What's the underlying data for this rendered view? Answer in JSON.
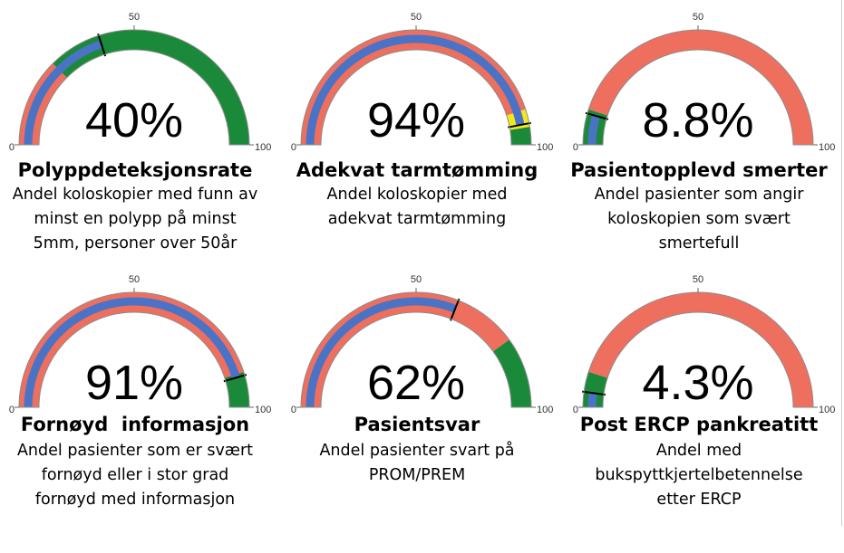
{
  "colors": {
    "red": "#ef6f5e",
    "green": "#1a8a3a",
    "blue": "#4a73c6",
    "yellow": "#f2e81c",
    "outline": "#8c8c8c",
    "needle": "#000000"
  },
  "chart_data": [
    {
      "type": "gauge",
      "title": "Polyppdeteksjonsrate",
      "description": [
        "Andel koloskopier med funn av",
        "minst en polypp på minst",
        "5mm, personer over 50år"
      ],
      "value": 40,
      "value_label": "40%",
      "min": 0,
      "mid": 50,
      "max": 100,
      "tick_labels": {
        "min": "0",
        "mid": "50",
        "max": "100"
      },
      "bands": [
        {
          "from": 0,
          "to": 25,
          "color": "red"
        },
        {
          "from": 25,
          "to": 100,
          "color": "green"
        }
      ]
    },
    {
      "type": "gauge",
      "title": "Adekvat tarmtømming",
      "description": [
        "Andel koloskopier med",
        "adekvat tarmtømming"
      ],
      "value": 94,
      "value_label": "94%",
      "min": 0,
      "mid": 50,
      "max": 100,
      "tick_labels": {
        "min": "0",
        "mid": "50",
        "max": "100"
      },
      "bands": [
        {
          "from": 0,
          "to": 90,
          "color": "red"
        },
        {
          "from": 90,
          "to": 95,
          "color": "yellow"
        },
        {
          "from": 95,
          "to": 100,
          "color": "green"
        }
      ]
    },
    {
      "type": "gauge",
      "title": "Pasientopplevd smerter",
      "description": [
        "Andel pasienter som angir",
        "koloskopien som svært",
        "smertefull"
      ],
      "value": 8.8,
      "value_label": "8.8%",
      "min": 0,
      "mid": 50,
      "max": 100,
      "tick_labels": {
        "min": "0",
        "mid": "50",
        "max": "100"
      },
      "bands": [
        {
          "from": 0,
          "to": 10,
          "color": "green"
        },
        {
          "from": 10,
          "to": 100,
          "color": "red"
        }
      ]
    },
    {
      "type": "gauge",
      "title": "Fornøyd  informasjon",
      "description": [
        "Andel pasienter som er svært",
        "fornøyd eller i stor grad",
        "fornøyd med informasjon"
      ],
      "value": 91,
      "value_label": "91%",
      "min": 0,
      "mid": 50,
      "max": 100,
      "tick_labels": {
        "min": "0",
        "mid": "50",
        "max": "100"
      },
      "bands": [
        {
          "from": 0,
          "to": 90,
          "color": "red"
        },
        {
          "from": 90,
          "to": 100,
          "color": "green"
        }
      ]
    },
    {
      "type": "gauge",
      "title": "Pasientsvar",
      "description": [
        "Andel pasienter svart på",
        "PROM/PREM"
      ],
      "value": 62,
      "value_label": "62%",
      "min": 0,
      "mid": 50,
      "max": 100,
      "tick_labels": {
        "min": "0",
        "mid": "50",
        "max": "100"
      },
      "bands": [
        {
          "from": 0,
          "to": 80,
          "color": "red"
        },
        {
          "from": 80,
          "to": 100,
          "color": "green"
        }
      ]
    },
    {
      "type": "gauge",
      "title": "Post ERCP pankreatitt",
      "description": [
        "Andel med",
        "bukspyttkjertelbetennelse",
        "etter ERCP"
      ],
      "value": 4.3,
      "value_label": "4.3%",
      "min": 0,
      "mid": 50,
      "max": 100,
      "tick_labels": {
        "min": "0",
        "mid": "50",
        "max": "100"
      },
      "bands": [
        {
          "from": 0,
          "to": 10,
          "color": "green"
        },
        {
          "from": 10,
          "to": 100,
          "color": "red"
        }
      ]
    }
  ]
}
